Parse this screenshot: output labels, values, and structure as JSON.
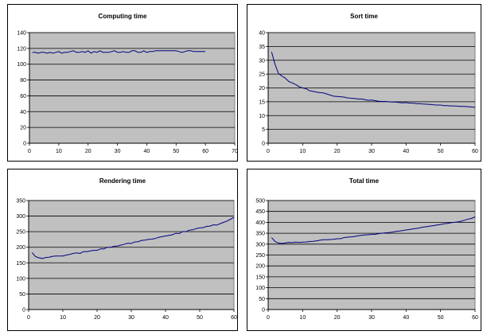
{
  "colors": {
    "plot_bg": "#c0c0c0",
    "gridline": "#000000",
    "series": "#000080",
    "frame": "#808080"
  },
  "chart_data": [
    {
      "type": "line",
      "title": "Computing time",
      "xlim": [
        0,
        70
      ],
      "ylim": [
        0,
        140
      ],
      "xticks": [
        0,
        10,
        20,
        30,
        40,
        50,
        60,
        70
      ],
      "yticks": [
        0,
        20,
        40,
        60,
        80,
        100,
        120,
        140
      ],
      "grid": "horizontal",
      "series": [
        {
          "x": [
            1,
            2,
            3,
            4,
            5,
            6,
            7,
            8,
            9,
            10,
            11,
            12,
            13,
            14,
            15,
            16,
            17,
            18,
            19,
            20,
            21,
            22,
            23,
            24,
            25,
            26,
            27,
            28,
            29,
            30,
            31,
            32,
            33,
            34,
            35,
            36,
            37,
            38,
            39,
            40,
            41,
            42,
            43,
            44,
            45,
            46,
            47,
            48,
            49,
            50,
            51,
            52,
            53,
            54,
            55,
            56,
            57,
            58,
            59,
            60
          ],
          "values": [
            115,
            115,
            114,
            115,
            115,
            114,
            115,
            114,
            115,
            116,
            114,
            115,
            115,
            116,
            117,
            115,
            115,
            116,
            115,
            117,
            114,
            116,
            115,
            117,
            115,
            115,
            115,
            116,
            117,
            115,
            115,
            116,
            115,
            115,
            117,
            117,
            115,
            115,
            117,
            115,
            116,
            116,
            117,
            117,
            117,
            117,
            117,
            117,
            117,
            117,
            116,
            115,
            116,
            117,
            117,
            116,
            116,
            116,
            116,
            116
          ]
        }
      ]
    },
    {
      "type": "line",
      "title": "Sort time",
      "xlim": [
        0,
        60
      ],
      "ylim": [
        0,
        40
      ],
      "xticks": [
        0,
        10,
        20,
        30,
        40,
        50,
        60
      ],
      "yticks": [
        0,
        5,
        10,
        15,
        20,
        25,
        30,
        35,
        40
      ],
      "grid": "horizontal",
      "series": [
        {
          "x": [
            1,
            2,
            3,
            4,
            5,
            6,
            7,
            8,
            9,
            10,
            11,
            12,
            13,
            14,
            15,
            16,
            17,
            18,
            19,
            20,
            21,
            22,
            23,
            24,
            25,
            26,
            27,
            28,
            29,
            30,
            31,
            32,
            33,
            34,
            35,
            36,
            37,
            38,
            39,
            40,
            41,
            42,
            43,
            44,
            45,
            46,
            47,
            48,
            49,
            50,
            51,
            52,
            53,
            54,
            55,
            56,
            57,
            58,
            59,
            60
          ],
          "values": [
            33,
            28.5,
            25.2,
            24.3,
            23.5,
            22.3,
            21.8,
            21.2,
            20.4,
            20.0,
            19.7,
            19.0,
            18.8,
            18.5,
            18.3,
            18.2,
            17.8,
            17.4,
            17.0,
            16.9,
            16.8,
            16.7,
            16.4,
            16.3,
            16.2,
            16.0,
            16.0,
            15.8,
            15.5,
            15.6,
            15.4,
            15.2,
            15.1,
            15.1,
            15.0,
            14.9,
            14.9,
            14.7,
            14.6,
            14.7,
            14.5,
            14.5,
            14.3,
            14.3,
            14.2,
            14.1,
            14.0,
            13.9,
            13.8,
            13.8,
            13.6,
            13.6,
            13.5,
            13.5,
            13.4,
            13.3,
            13.3,
            13.2,
            13.1,
            13.0
          ]
        }
      ]
    },
    {
      "type": "line",
      "title": "Rendering time",
      "xlim": [
        0,
        60
      ],
      "ylim": [
        0,
        350
      ],
      "xticks": [
        0,
        10,
        20,
        30,
        40,
        50,
        60
      ],
      "yticks": [
        0,
        50,
        100,
        150,
        200,
        250,
        300,
        350
      ],
      "grid": "horizontal",
      "series": [
        {
          "x": [
            1,
            2,
            3,
            4,
            5,
            6,
            7,
            8,
            9,
            10,
            11,
            12,
            13,
            14,
            15,
            16,
            17,
            18,
            19,
            20,
            21,
            22,
            23,
            24,
            25,
            26,
            27,
            28,
            29,
            30,
            31,
            32,
            33,
            34,
            35,
            36,
            37,
            38,
            39,
            40,
            41,
            42,
            43,
            44,
            45,
            46,
            47,
            48,
            49,
            50,
            51,
            52,
            53,
            54,
            55,
            56,
            57,
            58,
            59,
            60
          ],
          "values": [
            183,
            170,
            166,
            164,
            167,
            168,
            171,
            172,
            172,
            172,
            175,
            177,
            180,
            182,
            180,
            186,
            186,
            188,
            190,
            190,
            195,
            195,
            200,
            200,
            203,
            204,
            207,
            210,
            213,
            212,
            217,
            218,
            222,
            223,
            225,
            226,
            228,
            232,
            234,
            236,
            238,
            240,
            245,
            244,
            250,
            250,
            255,
            256,
            260,
            262,
            263,
            267,
            268,
            272,
            271,
            276,
            280,
            284,
            290,
            296
          ]
        }
      ]
    },
    {
      "type": "line",
      "title": "Total time",
      "xlim": [
        0,
        60
      ],
      "ylim": [
        0,
        500
      ],
      "xticks": [
        0,
        10,
        20,
        30,
        40,
        50,
        60
      ],
      "yticks": [
        0,
        50,
        100,
        150,
        200,
        250,
        300,
        350,
        400,
        450,
        500
      ],
      "grid": "horizontal",
      "series": [
        {
          "x": [
            1,
            2,
            3,
            4,
            5,
            6,
            7,
            8,
            9,
            10,
            11,
            12,
            13,
            14,
            15,
            16,
            17,
            18,
            19,
            20,
            21,
            22,
            23,
            24,
            25,
            26,
            27,
            28,
            29,
            30,
            31,
            32,
            33,
            34,
            35,
            36,
            37,
            38,
            39,
            40,
            41,
            42,
            43,
            44,
            45,
            46,
            47,
            48,
            49,
            50,
            51,
            52,
            53,
            54,
            55,
            56,
            57,
            58,
            59,
            60
          ],
          "values": [
            330,
            312,
            305,
            303,
            306,
            308,
            307,
            309,
            308,
            309,
            310,
            312,
            313,
            315,
            318,
            320,
            320,
            321,
            322,
            325,
            325,
            330,
            332,
            333,
            335,
            338,
            340,
            342,
            343,
            345,
            345,
            348,
            350,
            352,
            353,
            355,
            358,
            360,
            362,
            365,
            367,
            370,
            372,
            375,
            378,
            380,
            383,
            385,
            388,
            390,
            393,
            395,
            398,
            400,
            402,
            405,
            410,
            415,
            418,
            425
          ]
        }
      ]
    }
  ]
}
